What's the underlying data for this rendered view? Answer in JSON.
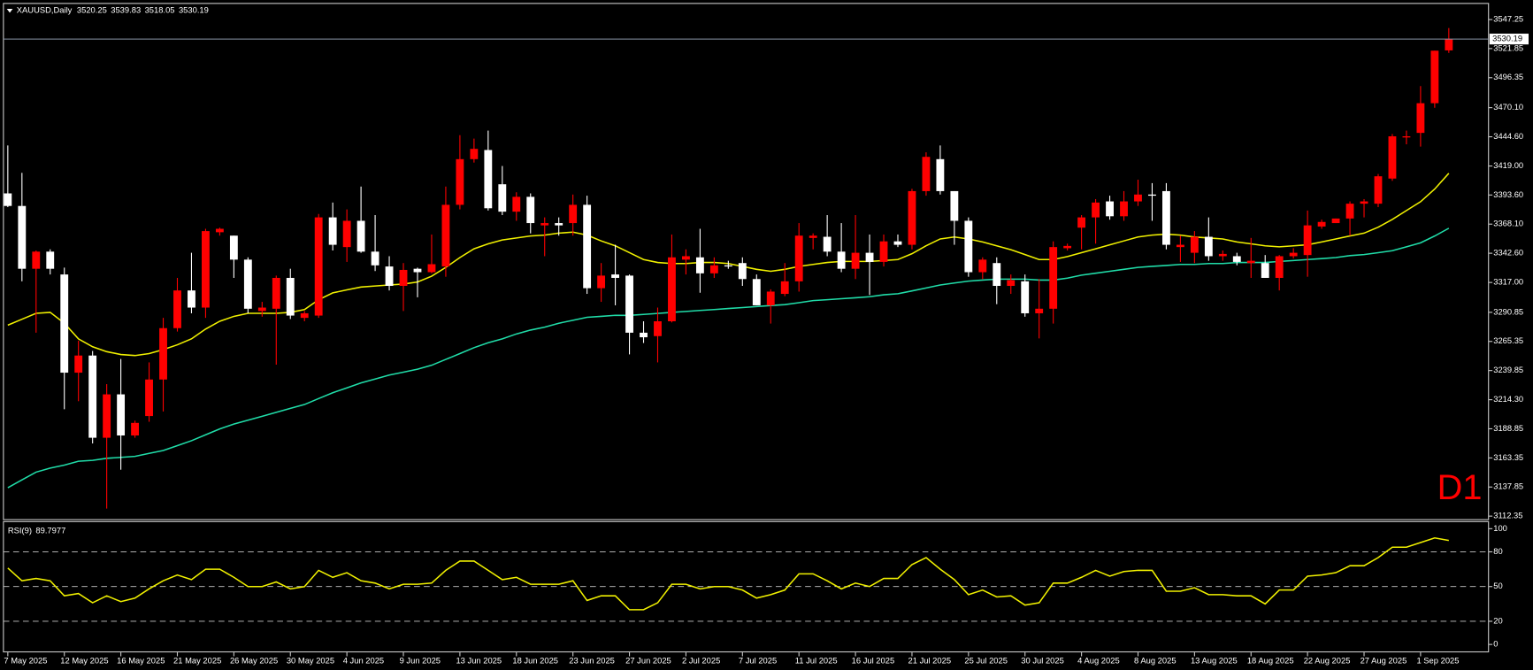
{
  "chart_data": [
    {
      "type": "candlestick",
      "title": "XAUUSD,Daily",
      "timeframe_label": "D1",
      "up_color": "#ff0000",
      "down_color": "#ffffff",
      "categories": [
        "7 May 2025",
        null,
        null,
        null,
        "12 May 2025",
        null,
        null,
        null,
        "16 May 2025",
        null,
        null,
        null,
        "21 May 2025",
        null,
        null,
        null,
        "26 May 2025",
        null,
        null,
        null,
        "30 May 2025",
        null,
        null,
        null,
        "4 Jun 2025",
        null,
        null,
        null,
        "9 Jun 2025",
        null,
        null,
        null,
        "13 Jun 2025",
        null,
        null,
        null,
        "18 Jun 2025",
        null,
        null,
        null,
        "23 Jun 2025",
        null,
        null,
        null,
        "27 Jun 2025",
        null,
        null,
        null,
        "2 Jul 2025",
        null,
        null,
        null,
        "7 Jul 2025",
        null,
        null,
        null,
        "11 Jul 2025",
        null,
        null,
        null,
        "16 Jul 2025",
        null,
        null,
        null,
        "21 Jul 2025",
        null,
        null,
        null,
        "25 Jul 2025",
        null,
        null,
        null,
        "30 Jul 2025",
        null,
        null,
        null,
        "4 Aug 2025",
        null,
        null,
        null,
        "8 Aug 2025",
        null,
        null,
        null,
        "13 Aug 2025",
        null,
        null,
        null,
        "18 Aug 2025",
        null,
        null,
        null,
        "22 Aug 2025",
        null,
        null,
        null,
        "27 Aug 2025",
        null,
        null,
        null,
        "1 Sep 2025",
        null,
        null
      ],
      "open": [
        3395,
        3384,
        3329,
        3344,
        3324,
        3238,
        3253,
        3181,
        3219,
        3183,
        3200,
        3232,
        3277,
        3310,
        3295,
        3361,
        3358,
        3337,
        3292,
        3294,
        3321,
        3286,
        3288,
        3374,
        3348,
        3371,
        3344,
        3331,
        3314,
        3329,
        3326,
        3331,
        3385,
        3425,
        3433,
        3403,
        3379,
        3392,
        3367,
        3369,
        3369,
        3385,
        3312,
        3324,
        3323,
        3273,
        3270,
        3283,
        3337,
        3339,
        3325,
        3332,
        3334,
        3320,
        3297,
        3307,
        3318,
        3356,
        3357,
        3344,
        3329,
        3343,
        3335,
        3353,
        3350,
        3397,
        3425,
        3397,
        3371,
        3326,
        3334,
        3314,
        3318,
        3290,
        3294,
        3347,
        3365,
        3374,
        3388,
        3375,
        3388,
        3394,
        3397,
        3348,
        3343,
        3357,
        3340,
        3340,
        3334,
        3334,
        3321,
        3340,
        3341,
        3366,
        3369,
        3373,
        3386,
        3386,
        3408,
        3444,
        3448,
        3474,
        3520.25
      ],
      "high": [
        3437,
        3413,
        3345,
        3346,
        3330,
        3266,
        3257,
        3228,
        3250,
        3196,
        3247,
        3286,
        3321,
        3343,
        3364,
        3365,
        3358,
        3339,
        3300,
        3323,
        3329,
        3292,
        3377,
        3387,
        3381,
        3401,
        3376,
        3340,
        3334,
        3330,
        3359,
        3401,
        3446,
        3443,
        3450,
        3419,
        3396,
        3395,
        3374,
        3374,
        3394,
        3393,
        3334,
        3350,
        3324,
        3283,
        3295,
        3359,
        3346,
        3364,
        3339,
        3336,
        3339,
        3324,
        3311,
        3334,
        3369,
        3360,
        3376,
        3369,
        3376,
        3359,
        3359,
        3359,
        3399,
        3431,
        3437,
        3397,
        3374,
        3339,
        3339,
        3324,
        3324,
        3320,
        3353,
        3351,
        3376,
        3390,
        3393,
        3397,
        3407,
        3404,
        3404,
        3358,
        3362,
        3374,
        3345,
        3343,
        3356,
        3341,
        3341,
        3347,
        3380,
        3372,
        3373,
        3388,
        3390,
        3412,
        3447,
        3450,
        3489,
        3520,
        3539.83
      ],
      "low": [
        3383,
        3318,
        3273,
        3324,
        3206,
        3213,
        3176,
        3119,
        3153,
        3181,
        3195,
        3204,
        3274,
        3290,
        3286,
        3358,
        3321,
        3290,
        3287,
        3245,
        3285,
        3283,
        3286,
        3345,
        3335,
        3343,
        3327,
        3310,
        3292,
        3304,
        3325,
        3322,
        3381,
        3422,
        3380,
        3376,
        3371,
        3360,
        3340,
        3358,
        3358,
        3307,
        3300,
        3297,
        3254,
        3264,
        3247,
        3282,
        3324,
        3308,
        3321,
        3329,
        3314,
        3297,
        3281,
        3305,
        3309,
        3346,
        3340,
        3326,
        3320,
        3306,
        3331,
        3348,
        3346,
        3393,
        3394,
        3350,
        3322,
        3320,
        3298,
        3307,
        3287,
        3268,
        3281,
        3345,
        3346,
        3351,
        3372,
        3371,
        3384,
        3371,
        3346,
        3335,
        3334,
        3336,
        3336,
        3332,
        3321,
        3321,
        3310,
        3338,
        3322,
        3364,
        3369,
        3358,
        3374,
        3383,
        3406,
        3438,
        3436,
        3470,
        3518.05
      ],
      "close": [
        3384,
        3329,
        3344,
        3329,
        3238,
        3253,
        3181,
        3219,
        3183,
        3194,
        3232,
        3277,
        3310,
        3295,
        3362,
        3364,
        3337,
        3294,
        3295,
        3321,
        3288,
        3290,
        3374,
        3350,
        3371,
        3344,
        3332,
        3314,
        3328,
        3326,
        3333,
        3385,
        3425,
        3434,
        3382,
        3379,
        3392,
        3369,
        3369,
        3367,
        3385,
        3312,
        3323,
        3321,
        3273,
        3269,
        3283,
        3339,
        3340,
        3325,
        3332,
        3331,
        3320,
        3297,
        3309,
        3318,
        3358,
        3358,
        3344,
        3329,
        3343,
        3335,
        3353,
        3350,
        3397,
        3427,
        3397,
        3371,
        3326,
        3337,
        3314,
        3319,
        3290,
        3294,
        3348,
        3349,
        3374,
        3387,
        3375,
        3388,
        3394,
        3393,
        3350,
        3350,
        3357,
        3340,
        3342,
        3335,
        3336,
        3321,
        3340,
        3343,
        3367,
        3370,
        3373,
        3386,
        3388,
        3410,
        3445,
        3445,
        3474,
        3520,
        3530.19
      ],
      "series": [
        {
          "color": "#f0f000",
          "values": [
            3279.6,
            3284.8,
            3290.0,
            3290.8,
            3281.3,
            3267.6,
            3260.7,
            3256.4,
            3253.9,
            3253.0,
            3254.7,
            3258.2,
            3262.4,
            3267.6,
            3276.2,
            3283.0,
            3287.3,
            3290.0,
            3290.0,
            3290.0,
            3290.8,
            3293.3,
            3301.9,
            3307.9,
            3310.5,
            3313.0,
            3313.9,
            3314.8,
            3315.6,
            3317.4,
            3322.5,
            3330.2,
            3338.8,
            3346.5,
            3350.8,
            3354.2,
            3356.0,
            3357.7,
            3358.5,
            3360.2,
            3361.1,
            3358.5,
            3353.4,
            3349.1,
            3343.1,
            3337.1,
            3334.5,
            3333.6,
            3333.6,
            3334.5,
            3334.5,
            3333.6,
            3331.1,
            3328.5,
            3326.8,
            3328.5,
            3331.1,
            3332.8,
            3334.5,
            3335.4,
            3335.4,
            3335.4,
            3336.2,
            3337.1,
            3342.2,
            3349.1,
            3355.1,
            3356.8,
            3355.1,
            3352.5,
            3349.1,
            3345.7,
            3341.4,
            3337.1,
            3337.1,
            3339.7,
            3343.1,
            3346.5,
            3350.0,
            3353.4,
            3356.8,
            3358.5,
            3359.3,
            3358.5,
            3356.8,
            3356.0,
            3355.1,
            3352.5,
            3350.8,
            3349.1,
            3348.2,
            3349.1,
            3350.0,
            3352.5,
            3355.1,
            3357.7,
            3360.2,
            3365.4,
            3372.2,
            3380.0,
            3387.7,
            3398.8,
            3412.6
          ]
        },
        {
          "color": "#20dca8",
          "values": [
            3137.2,
            3144.1,
            3150.9,
            3154.4,
            3157.0,
            3160.4,
            3161.2,
            3163.0,
            3163.8,
            3164.7,
            3167.3,
            3169.8,
            3174.1,
            3178.4,
            3183.6,
            3188.7,
            3193.0,
            3196.4,
            3199.8,
            3203.3,
            3206.7,
            3210.1,
            3215.3,
            3220.4,
            3224.7,
            3229.0,
            3232.4,
            3235.9,
            3238.4,
            3241.0,
            3244.5,
            3249.6,
            3254.7,
            3259.9,
            3264.2,
            3267.6,
            3271.9,
            3275.3,
            3277.9,
            3281.3,
            3283.9,
            3286.5,
            3287.3,
            3288.2,
            3288.2,
            3289.0,
            3289.9,
            3290.8,
            3291.6,
            3292.5,
            3293.3,
            3294.2,
            3295.0,
            3295.9,
            3296.8,
            3297.6,
            3299.3,
            3301.1,
            3301.9,
            3302.8,
            3303.6,
            3304.5,
            3306.2,
            3307.1,
            3309.6,
            3312.2,
            3314.8,
            3316.5,
            3318.2,
            3319.1,
            3319.9,
            3319.9,
            3319.9,
            3319.1,
            3319.1,
            3320.8,
            3323.4,
            3325.1,
            3326.8,
            3328.5,
            3330.2,
            3331.1,
            3331.9,
            3332.8,
            3332.8,
            3333.6,
            3333.6,
            3334.5,
            3334.5,
            3334.5,
            3335.4,
            3336.2,
            3337.1,
            3337.9,
            3338.8,
            3340.5,
            3341.4,
            3343.1,
            3344.8,
            3348.2,
            3351.7,
            3357.7,
            3364.5
          ]
        }
      ],
      "ylim": [
        3109.7,
        3560.1
      ],
      "yticks": [
        3547.25,
        3521.85,
        3496.35,
        {
          "value": 3470.1,
          "label": "3470.10"
        },
        {
          "value": 3444.6,
          "label": "3444.60"
        },
        {
          "value": 3419,
          "label": "3419.00"
        },
        {
          "value": 3393.6,
          "label": "3393.60"
        },
        {
          "value": 3368.1,
          "label": "3368.10"
        },
        {
          "value": 3342.6,
          "label": "3342.60"
        },
        {
          "value": 3317,
          "label": "3317.00"
        },
        3290.85,
        3265.35,
        3239.85,
        {
          "value": 3214.3,
          "label": "3214.30"
        },
        3188.85,
        3163.35,
        3137.85,
        3112.35
      ]
    },
    {
      "type": "line",
      "title": "RSI(9)",
      "color": "#f0f000",
      "values": [
        66,
        55,
        57,
        55,
        42,
        44,
        36,
        42,
        37,
        40,
        48,
        55,
        60,
        56,
        65,
        65,
        58,
        50,
        50,
        54,
        48,
        50,
        64,
        58,
        62,
        55,
        53,
        48,
        52,
        52,
        53,
        64,
        72,
        72,
        64,
        56,
        58,
        52,
        52,
        52,
        55,
        38,
        42,
        42,
        30,
        30,
        36,
        52,
        52,
        48,
        50,
        50,
        47,
        40,
        43,
        47,
        61,
        61,
        55,
        48,
        53,
        50,
        57,
        57,
        69,
        75,
        65,
        56,
        43,
        47,
        41,
        42,
        34,
        36,
        53,
        53,
        58,
        64,
        59,
        63,
        64,
        64,
        46,
        46,
        49,
        43,
        43,
        42,
        42,
        35,
        47,
        47,
        59,
        60,
        62,
        68,
        68,
        75,
        84,
        84,
        88,
        92,
        89.7977
      ],
      "ylim": [
        -6,
        104
      ],
      "yticks": [
        100,
        80,
        50,
        20,
        0
      ],
      "levels": [
        80,
        50,
        20
      ]
    }
  ]
}
